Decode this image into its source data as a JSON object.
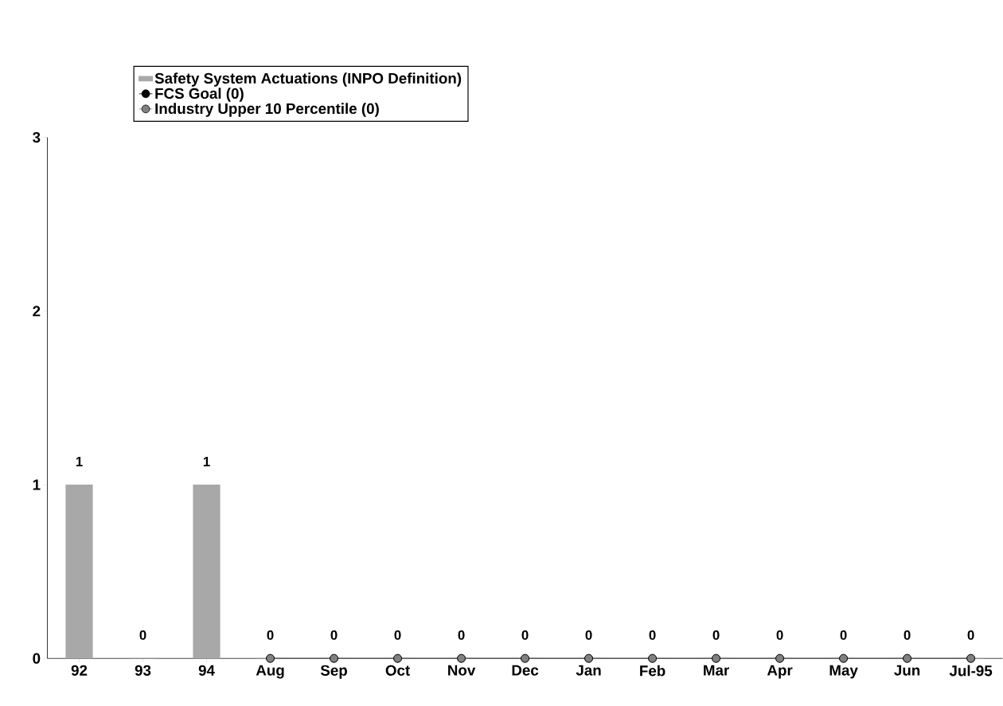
{
  "chart_data": {
    "type": "bar",
    "categories": [
      "92",
      "93",
      "94",
      "Aug",
      "Sep",
      "Oct",
      "Nov",
      "Dec",
      "Jan",
      "Feb",
      "Mar",
      "Apr",
      "May",
      "Jun",
      "Jul-95"
    ],
    "series": [
      {
        "name": "Safety System Actuations (INPO Definition)",
        "color": "#a8a8a8",
        "values": [
          1,
          0,
          1,
          0,
          0,
          0,
          0,
          0,
          0,
          0,
          0,
          0,
          0,
          0,
          0
        ],
        "value_labels": [
          "1",
          "0",
          "1",
          "0",
          "0",
          "0",
          "0",
          "0",
          "0",
          "0",
          "0",
          "0",
          "0",
          "0",
          "0"
        ]
      },
      {
        "name": "FCS Goal (0)",
        "type": "line",
        "color": "#000000",
        "values": [
          null,
          null,
          null,
          0,
          0,
          0,
          0,
          0,
          0,
          0,
          0,
          0,
          0,
          0,
          0
        ]
      },
      {
        "name": "Industry Upper 10 Percentile (0)",
        "type": "line",
        "color": "#808080",
        "values": [
          null,
          null,
          null,
          0,
          0,
          0,
          0,
          0,
          0,
          0,
          0,
          0,
          0,
          0,
          0
        ]
      }
    ],
    "ylim": [
      0,
      3
    ],
    "yticks": [
      0,
      1,
      2,
      3
    ],
    "legend": "top left",
    "marker": "circle",
    "grid": false
  }
}
